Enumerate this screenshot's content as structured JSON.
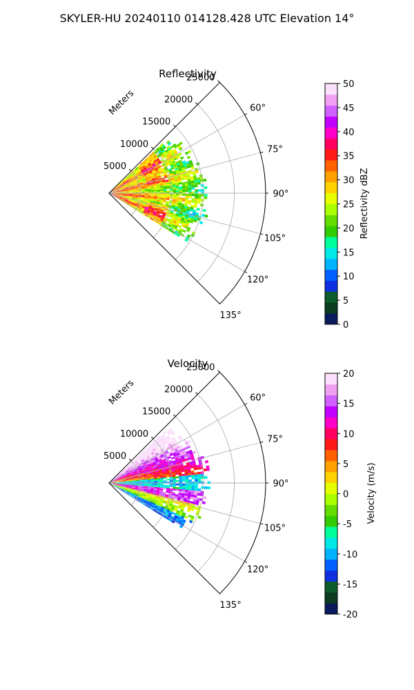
{
  "figure_title": "SKYLER-HU  20240110  014128.428 UTC Elevation 14°",
  "colors": {
    "reflectivity_cmap": [
      "#0a1a5c",
      "#0b3b20",
      "#0d5c2e",
      "#1030e0",
      "#0060ff",
      "#00b4ff",
      "#00e8e8",
      "#00ff9a",
      "#33cc00",
      "#66dd00",
      "#aaff00",
      "#e6ff00",
      "#ffd200",
      "#ffa000",
      "#ff6000",
      "#ff1a1a",
      "#ff0060",
      "#ff00c8",
      "#c000ff",
      "#d060ff",
      "#f0a0f0",
      "#fbe0fb"
    ],
    "velocity_cmap": [
      "#0a1a5c",
      "#0b3b20",
      "#0d5c2e",
      "#1030e0",
      "#0060ff",
      "#00b4ff",
      "#00e8e8",
      "#00ff9a",
      "#33cc00",
      "#66dd00",
      "#aaff00",
      "#e6ff00",
      "#ffd200",
      "#ffa000",
      "#ff6000",
      "#ff1a1a",
      "#ff0060",
      "#ff00c8",
      "#c000ff",
      "#d060ff",
      "#f0a0f0",
      "#fbe0fb"
    ]
  },
  "chart_data": [
    {
      "type": "heatmap",
      "projection": "polar-sector",
      "title": "Reflectivity",
      "radial_label": "Meters",
      "radial_ticks": [
        5000,
        10000,
        15000,
        20000,
        25000
      ],
      "radial_max": 25000,
      "azimuth_ticks": [
        "60°",
        "75°",
        "90°",
        "105°",
        "120°",
        "135°"
      ],
      "azimuth_range_deg": [
        45,
        135
      ],
      "data_extent_m": 15000,
      "colorbar": {
        "label": "Reflectivity dBZ",
        "ticks": [
          0,
          5,
          10,
          15,
          20,
          25,
          30,
          35,
          40,
          45,
          50
        ],
        "range": [
          0,
          50
        ]
      },
      "grid": true
    },
    {
      "type": "heatmap",
      "projection": "polar-sector",
      "title": "Velocity",
      "radial_label": "Meters",
      "radial_ticks": [
        5000,
        10000,
        15000,
        20000,
        25000
      ],
      "radial_max": 25000,
      "azimuth_ticks": [
        "60°",
        "75°",
        "90°",
        "105°",
        "120°",
        "135°"
      ],
      "azimuth_range_deg": [
        45,
        135
      ],
      "data_extent_m": 15000,
      "colorbar": {
        "label": "Velocity (m/s)",
        "ticks": [
          -20,
          -15,
          -10,
          -5,
          0,
          5,
          10,
          15,
          20
        ],
        "range": [
          -20,
          20
        ]
      },
      "grid": true
    }
  ]
}
